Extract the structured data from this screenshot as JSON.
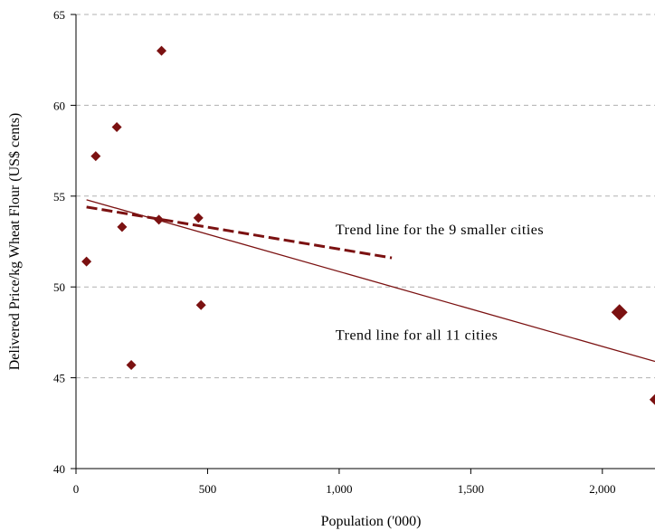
{
  "chart_data": {
    "type": "scatter",
    "xlabel": "Population ('000)",
    "ylabel": "Delivered Price/kg Wheat Flour (US$ cents)",
    "xlim": [
      0,
      2200
    ],
    "ylim": [
      40,
      65
    ],
    "x_ticks": [
      0,
      500,
      1000,
      1500,
      2000
    ],
    "x_tick_labels": [
      "0",
      "500",
      "1,000",
      "1,500",
      "2,000"
    ],
    "y_ticks": [
      40,
      45,
      50,
      55,
      60,
      65
    ],
    "y_tick_labels": [
      "40",
      "45",
      "50",
      "55",
      "60",
      "65"
    ],
    "grid": "horizontal dashed",
    "marker_color": "#7b1111",
    "series": [
      {
        "x": [
          40,
          75,
          155,
          175,
          210,
          315,
          325,
          465,
          475
        ],
        "y": [
          51.4,
          57.2,
          58.8,
          53.3,
          45.7,
          53.7,
          63.0,
          53.8,
          49.0
        ],
        "marker": "diamond-small"
      },
      {
        "x": [
          2065,
          2210
        ],
        "y": [
          48.6,
          43.8
        ],
        "marker": "diamond-large"
      }
    ],
    "trend_lines": [
      {
        "style": "dashed",
        "x": [
          40,
          1200
        ],
        "y": [
          54.4,
          51.6
        ]
      },
      {
        "style": "solid",
        "x": [
          40,
          2200
        ],
        "y": [
          54.8,
          45.9
        ]
      }
    ],
    "annotations": [
      {
        "text": "Trend line for the 9 smaller cities",
        "x": 1000,
        "y": 52.9
      },
      {
        "text": "Trend line for all 11 cities",
        "x": 1000,
        "y": 47.1
      }
    ]
  }
}
